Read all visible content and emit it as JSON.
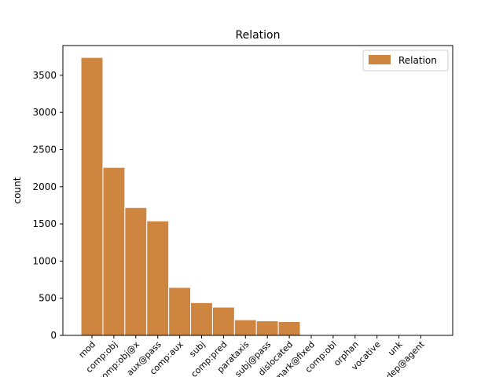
{
  "chart_data": {
    "type": "bar",
    "title": "Relation",
    "xlabel": "",
    "ylabel": "count",
    "ylim": [
      0,
      3900
    ],
    "yticks": [
      0,
      500,
      1000,
      1500,
      2000,
      2500,
      3000,
      3500
    ],
    "legend": {
      "placement": "top-right",
      "entries": [
        "Relation"
      ]
    },
    "grid": false,
    "bar_color": "#cd853f",
    "edge_color": "#ffffff",
    "categories": [
      "mod",
      "comp:obj",
      "comp:obj@x",
      "aux@pass",
      "comp:aux",
      "subj",
      "comp:pred",
      "parataxis",
      "subj@pass",
      "dislocated",
      "mark@fixed",
      "comp:obl",
      "orphan",
      "vocative",
      "unk",
      "udep@agent"
    ],
    "bars": [
      {
        "value": 3740
      },
      {
        "value": 2260
      },
      {
        "value": 1720
      },
      {
        "value": 1540
      },
      {
        "value": 645
      },
      {
        "value": 440
      },
      {
        "value": 380
      },
      {
        "value": 210
      },
      {
        "value": 195
      },
      {
        "value": 185
      },
      {
        "value": 0
      },
      {
        "value": 0
      },
      {
        "value": 0
      },
      {
        "value": 0
      },
      {
        "value": 0
      },
      {
        "value": 0
      }
    ]
  }
}
